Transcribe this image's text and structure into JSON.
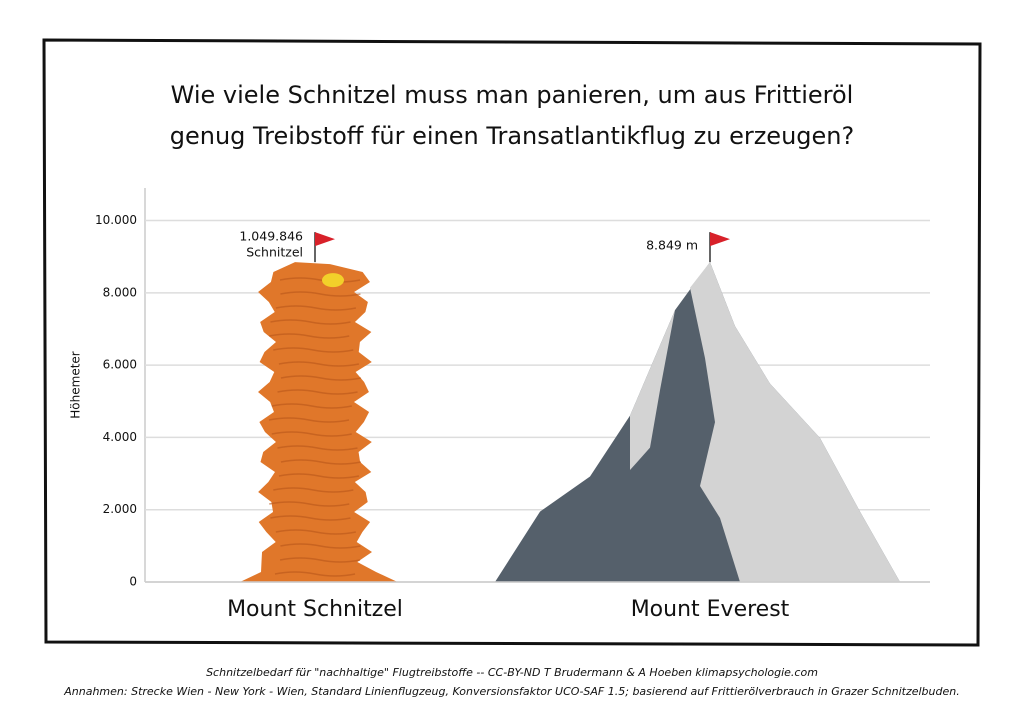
{
  "chart_data": {
    "type": "peaks",
    "title_lines": [
      "Wie viele Schnitzel muss man panieren, um aus Frittieröl",
      "genug Treibstoff für einen Transatlantikflug zu erzeugen?"
    ],
    "y_label": "Höhemeter",
    "categories": [
      "Mount Schnitzel",
      "Mount Everest"
    ],
    "values": [
      8849,
      8849
    ],
    "value_labels": [
      null,
      "8.849 m"
    ],
    "schnitzel_count_label": [
      "1.049.846",
      "Schnitzel"
    ],
    "colors": [
      "#e0772a",
      "#55606b"
    ],
    "ylim": [
      0,
      10900
    ],
    "yticks": [
      0,
      {
        "value": 2000,
        "label": "2.000"
      },
      {
        "value": 4000,
        "label": "4.000"
      },
      {
        "value": 6000,
        "label": "6.000"
      },
      {
        "value": 8000,
        "label": "8.000"
      },
      {
        "value": 10000,
        "label": "10.000"
      }
    ],
    "grid": true,
    "notes": [
      "Schnitzelbedarf für \"nachhaltige\" Flugtreibstoffe -- CC-BY-ND T Brudermann & A Hoeben  klimapsychologie.com",
      "Annahmen: Strecke Wien - New York - Wien, Standard Linienflugzeug, Konversionsfaktor UCO-SAF 1.5; basierend auf Frittierölverbrauch in Grazer Schnitzelbuden."
    ]
  }
}
